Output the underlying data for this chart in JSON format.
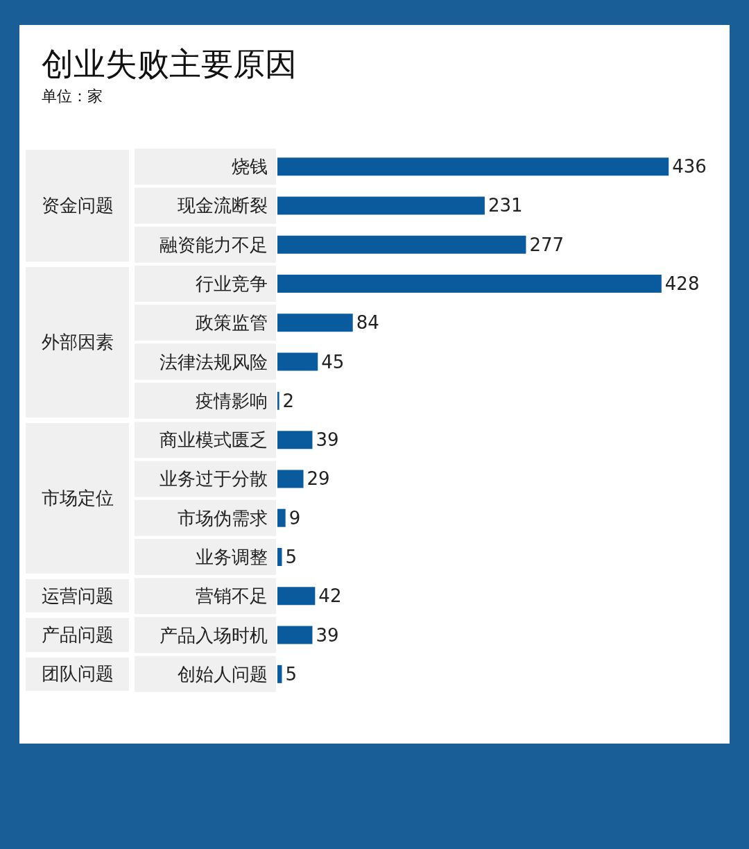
{
  "chart_data": {
    "type": "bar",
    "orientation": "horizontal",
    "title": "创业失败主要原因",
    "subtitle": "单位：家",
    "categories": [
      "烧钱",
      "现金流断裂",
      "融资能力不足",
      "行业竞争",
      "政策监管",
      "法律法规风险",
      "疫情影响",
      "商业模式匮乏",
      "业务过于分散",
      "市场伪需求",
      "业务调整",
      "营销不足",
      "产品入场时机",
      "创始人问题"
    ],
    "values": [
      436,
      231,
      277,
      428,
      84,
      45,
      2,
      39,
      29,
      9,
      5,
      42,
      39,
      5
    ],
    "color": "#0a5a9e",
    "data_labels": true,
    "annotations": [
      "资金问题",
      "外部因素",
      "市场定位",
      "运营问题",
      "产品问题",
      "团队问题"
    ]
  }
}
